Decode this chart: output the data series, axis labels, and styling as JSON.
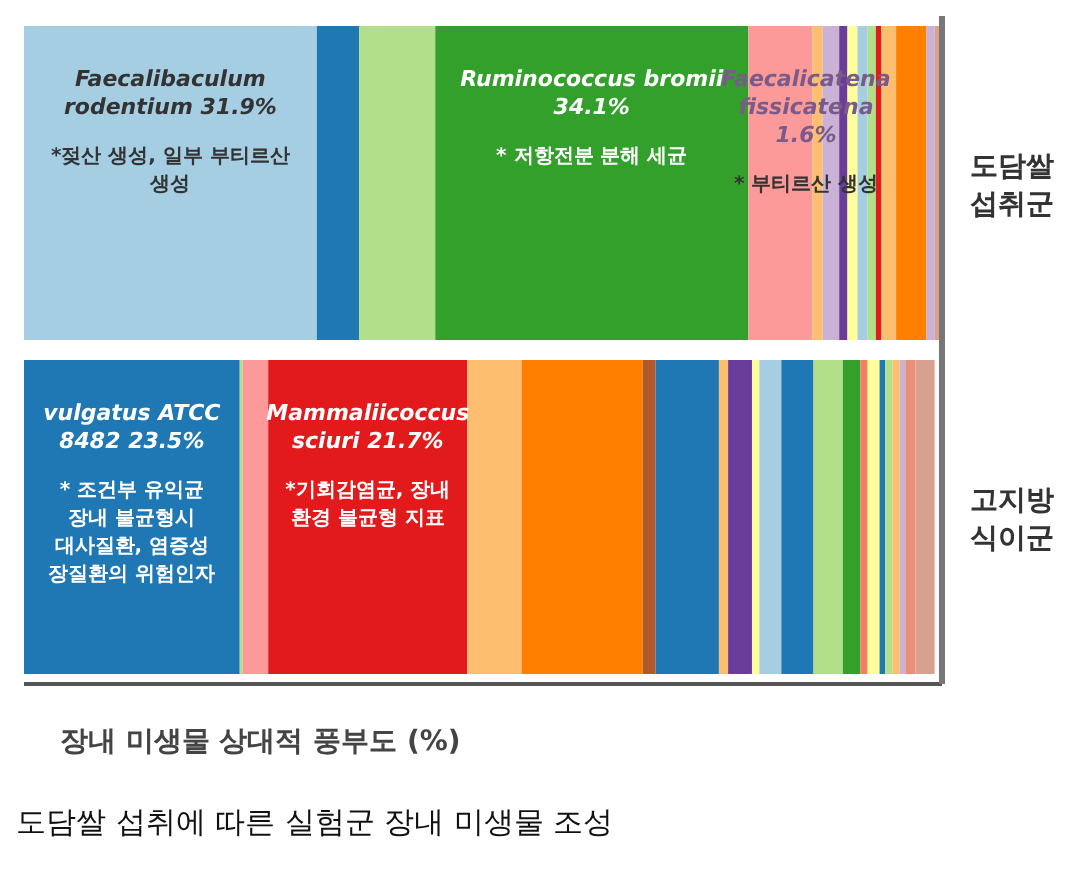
{
  "chart_data": {
    "type": "bar",
    "orientation": "horizontal",
    "stacked": true,
    "title": "도담쌀 섭취에 따른 실험군 장내 미생물 조성",
    "xlabel": "장내 미생물 상대적 풍부도 (%)",
    "categories": [
      "도담쌀 섭취군",
      "고지방 식이군"
    ],
    "xlim": [
      0,
      100
    ],
    "tick_labels": "y",
    "series": [
      {
        "values": [
          31.9,
          23.5
        ],
        "colors": [
          "#a6cee3",
          "#1f78b4"
        ],
        "value_labels": [
          "Faecalibaculum rodentium 31.9%",
          "vulgatus ATCC 8482 23.5%"
        ]
      },
      {
        "values": [
          4.6,
          0.3
        ],
        "colors": [
          "#1f78b4",
          "#b2df8a"
        ]
      },
      {
        "values": [
          8.3,
          2.8
        ],
        "colors": [
          "#b2df8a",
          "#fb9a99"
        ]
      },
      {
        "values": [
          34.1,
          21.7
        ],
        "colors": [
          "#33a02c",
          "#e31a1c"
        ],
        "value_labels": [
          "Ruminococcus bromii 34.1%",
          "Mammaliicoccus sciuri 21.7%"
        ]
      },
      {
        "values": [
          7.0,
          5.9
        ],
        "colors": [
          "#fb9a99",
          "#fdbf6f"
        ]
      },
      {
        "values": [
          1.1,
          13.2
        ],
        "colors": [
          "#fdbf6f",
          "#ff7f00"
        ]
      },
      {
        "values": [
          1.8,
          1.4
        ],
        "colors": [
          "#cab2d6",
          "#b15928"
        ]
      },
      {
        "values": [
          0.9,
          6.9
        ],
        "colors": [
          "#6a3d9a",
          "#1f78b4"
        ]
      },
      {
        "values": [
          1.1,
          1.0
        ],
        "colors": [
          "#ffff99",
          "#fdbf6f"
        ]
      },
      {
        "values": [
          1.1,
          2.6
        ],
        "colors": [
          "#a6cee3",
          "#6a3d9a"
        ]
      },
      {
        "values": [
          0.9,
          0.8
        ],
        "colors": [
          "#b2df8a",
          "#ffff99"
        ]
      },
      {
        "values": [
          0.6,
          2.4
        ],
        "colors": [
          "#e31a1c",
          "#a6cee3"
        ]
      },
      {
        "values": [
          1.6,
          3.5
        ],
        "colors": [
          "#fdbf6f",
          "#1f78b4"
        ],
        "value_labels": [
          "Faecalicatena fissicatena 1.6%",
          null
        ]
      },
      {
        "values": [
          3.3,
          3.2
        ],
        "colors": [
          "#ff7f00",
          "#b2df8a"
        ]
      },
      {
        "values": [
          0.9,
          1.9
        ],
        "colors": [
          "#cab2d6",
          "#33a02c"
        ]
      },
      {
        "values": [
          0.8,
          0.8
        ],
        "colors": [
          "#d9a08a",
          "#f08060"
        ]
      },
      {
        "values": [
          null,
          1.3
        ],
        "colors": [
          null,
          "#ffff99"
        ]
      },
      {
        "values": [
          null,
          0.6
        ],
        "colors": [
          null,
          "#1f78b4"
        ]
      },
      {
        "values": [
          null,
          0.8
        ],
        "colors": [
          null,
          "#b2df8a"
        ]
      },
      {
        "values": [
          null,
          0.8
        ],
        "colors": [
          null,
          "#fdbf6f"
        ]
      },
      {
        "values": [
          null,
          0.6
        ],
        "colors": [
          null,
          "#cab2d6"
        ]
      },
      {
        "values": [
          null,
          1.1
        ],
        "colors": [
          null,
          "#e8907a"
        ]
      },
      {
        "values": [
          null,
          2.1
        ],
        "colors": [
          null,
          "#d8a090"
        ]
      }
    ],
    "annotations": [
      "*젖산 생성, 일부 부티르산 생성",
      "* 저항전분 분해 세균",
      "* 부티르산 생성",
      "* 조건부 유익균 장내 불균형시 대사질환, 염증성 장질환의 위험인자",
      "*기회감염균, 장내 환경 불균형 지표"
    ]
  }
}
